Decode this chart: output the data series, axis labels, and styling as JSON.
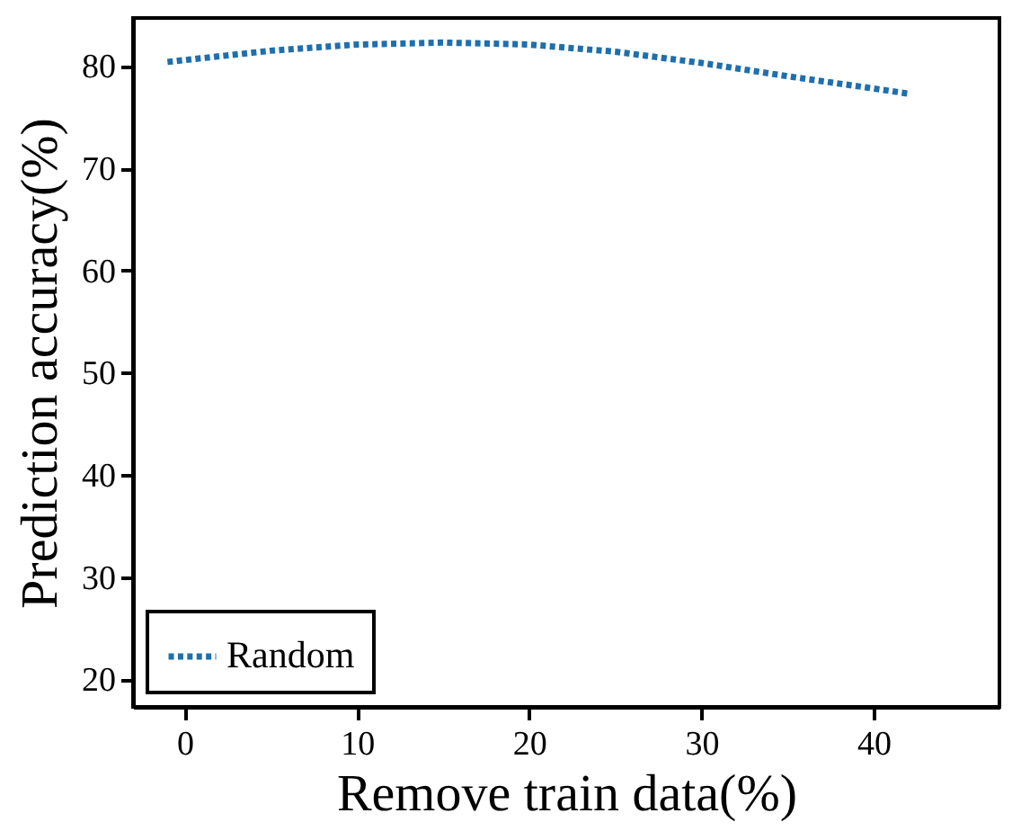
{
  "chart_data": {
    "type": "line",
    "xlabel": "Remove train data(%)",
    "ylabel": "Prediction accuracy(%)",
    "x": [
      -1,
      5,
      10,
      15,
      20,
      25,
      30,
      35,
      40,
      42
    ],
    "series": [
      {
        "name": "Random",
        "color": "#1f6fad",
        "values": [
          80.4,
          81.5,
          82.1,
          82.3,
          82.1,
          81.4,
          80.3,
          79.0,
          77.8,
          77.3
        ]
      }
    ],
    "xlim": [
      -3,
      47.3
    ],
    "xticks": [
      0,
      10,
      20,
      30,
      40
    ],
    "ylim": [
      17.3,
      84.7
    ],
    "yticks": [
      20,
      30,
      40,
      50,
      60,
      70,
      80
    ],
    "grid": false,
    "legend": "bottom left",
    "line_style": "dotted"
  }
}
